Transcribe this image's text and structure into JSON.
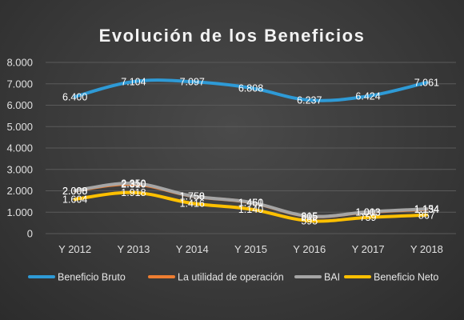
{
  "chart_data": {
    "type": "line",
    "title": "Evolución de los Beneficios",
    "xlabel": "",
    "ylabel": "",
    "categories": [
      "Y 2012",
      "Y 2013",
      "Y 2014",
      "Y 2015",
      "Y 2016",
      "Y 2017",
      "Y 2018"
    ],
    "ylim": [
      0,
      8000
    ],
    "yticks": [
      0,
      1000,
      2000,
      3000,
      4000,
      5000,
      6000,
      7000,
      8000
    ],
    "ytick_labels": [
      "0",
      "1.000",
      "2.000",
      "3.000",
      "4.000",
      "5.000",
      "6.000",
      "7.000",
      "8.000"
    ],
    "grid": true,
    "legend_position": "bottom",
    "series": [
      {
        "name": "Beneficio Bruto",
        "color": "#2e9ad6",
        "values": [
          6400,
          7104,
          7097,
          6808,
          6237,
          6424,
          7061
        ],
        "labels": [
          "6.400",
          "7.104",
          "7.097",
          "6.808",
          "6.237",
          "6.424",
          "7.061"
        ]
      },
      {
        "name": "La utilidad de operación",
        "color": "#ed7d31",
        "values": [
          2000,
          2310,
          1750,
          1451,
          805,
          1003,
          1134
        ],
        "labels": [
          "2.000",
          "2.310",
          "1.750",
          "1.451",
          "805",
          "1.003",
          "1.134"
        ]
      },
      {
        "name": "BAI",
        "color": "#a5a5a5",
        "values": [
          2008,
          2350,
          1758,
          1460,
          815,
          1013,
          1154
        ],
        "labels": [
          "2.008",
          "2.350",
          "1.758",
          "1.460",
          "815",
          "1.013",
          "1.154"
        ]
      },
      {
        "name": "Beneficio Neto",
        "color": "#ffc000",
        "values": [
          1604,
          1918,
          1416,
          1140,
          595,
          759,
          867
        ],
        "labels": [
          "1.604",
          "1.918",
          "1.416",
          "1.140",
          "595",
          "759",
          "867"
        ]
      }
    ]
  }
}
